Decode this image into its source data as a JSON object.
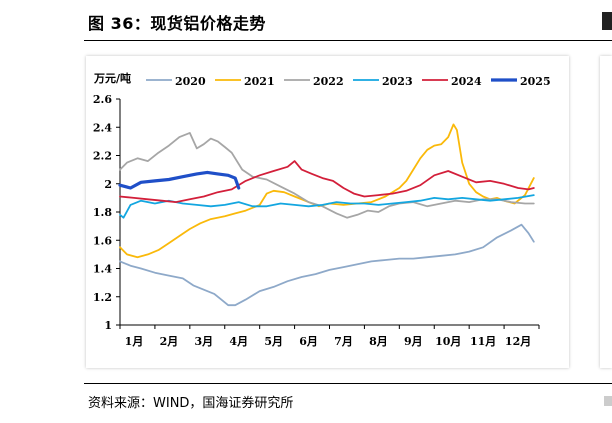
{
  "figure": {
    "title": "图 36：现货铝价格走势",
    "source": "资料来源：WIND，国海证券研究所"
  },
  "chart_data": {
    "type": "line",
    "title": "",
    "unit_label": "万元/吨",
    "xlabel": "",
    "ylabel": "万元/吨",
    "ylim": [
      1,
      2.6
    ],
    "yticks": [
      1,
      1.2,
      1.4,
      1.6,
      1.8,
      2,
      2.2,
      2.4,
      2.6
    ],
    "ytick_labels": [
      "1",
      "1.2",
      "1.4",
      "1.6",
      "1.8",
      "2",
      "2.2",
      "2.4",
      "2.6"
    ],
    "xlim": [
      1,
      13
    ],
    "xticks": [
      1,
      2,
      3,
      4,
      5,
      6,
      7,
      8,
      9,
      10,
      11,
      12
    ],
    "xtick_labels": [
      "1月",
      "2月",
      "3月",
      "4月",
      "5月",
      "6月",
      "7月",
      "8月",
      "9月",
      "10月",
      "11月",
      "12月"
    ],
    "legend_position": "top",
    "series": [
      {
        "name": "2020",
        "color": "#8EA9C9",
        "width": 1.8,
        "x": [
          1,
          1.3,
          1.6,
          2,
          2.4,
          2.8,
          3.1,
          3.4,
          3.7,
          3.9,
          4.1,
          4.3,
          4.6,
          5,
          5.4,
          5.8,
          6.2,
          6.6,
          7,
          7.4,
          7.8,
          8.2,
          8.6,
          9,
          9.4,
          9.8,
          10.2,
          10.6,
          11,
          11.4,
          11.8,
          12.2,
          12.5,
          12.7,
          12.85
        ],
        "y": [
          1.45,
          1.42,
          1.4,
          1.37,
          1.35,
          1.33,
          1.28,
          1.25,
          1.22,
          1.18,
          1.14,
          1.14,
          1.18,
          1.24,
          1.27,
          1.31,
          1.34,
          1.36,
          1.39,
          1.41,
          1.43,
          1.45,
          1.46,
          1.47,
          1.47,
          1.48,
          1.49,
          1.5,
          1.52,
          1.55,
          1.62,
          1.67,
          1.71,
          1.65,
          1.59
        ]
      },
      {
        "name": "2021",
        "color": "#FAB90A",
        "width": 1.8,
        "x": [
          1,
          1.2,
          1.5,
          1.8,
          2.1,
          2.4,
          2.7,
          3,
          3.3,
          3.6,
          4,
          4.3,
          4.6,
          5,
          5.2,
          5.4,
          5.7,
          6,
          6.3,
          6.7,
          7,
          7.4,
          7.8,
          8.2,
          8.6,
          9,
          9.2,
          9.4,
          9.6,
          9.8,
          10,
          10.2,
          10.4,
          10.55,
          10.65,
          10.8,
          11,
          11.2,
          11.4,
          11.6,
          11.8,
          12,
          12.3,
          12.6,
          12.85
        ],
        "y": [
          1.55,
          1.5,
          1.48,
          1.5,
          1.53,
          1.58,
          1.63,
          1.68,
          1.72,
          1.75,
          1.77,
          1.79,
          1.81,
          1.85,
          1.93,
          1.95,
          1.94,
          1.91,
          1.88,
          1.84,
          1.86,
          1.85,
          1.86,
          1.87,
          1.91,
          1.97,
          2.02,
          2.1,
          2.18,
          2.24,
          2.27,
          2.28,
          2.33,
          2.42,
          2.38,
          2.15,
          2.0,
          1.94,
          1.91,
          1.89,
          1.9,
          1.88,
          1.86,
          1.92,
          2.04
        ]
      },
      {
        "name": "2022",
        "color": "#A6A6A6",
        "width": 1.8,
        "x": [
          1,
          1.2,
          1.5,
          1.8,
          2.1,
          2.4,
          2.7,
          3,
          3.2,
          3.4,
          3.6,
          3.8,
          4,
          4.2,
          4.5,
          4.8,
          5.2,
          5.6,
          6,
          6.4,
          6.8,
          7.2,
          7.5,
          7.8,
          8.1,
          8.4,
          8.7,
          9,
          9.4,
          9.8,
          10.2,
          10.6,
          11,
          11.4,
          11.8,
          12.2,
          12.6,
          12.85
        ],
        "y": [
          2.1,
          2.15,
          2.18,
          2.16,
          2.22,
          2.27,
          2.33,
          2.36,
          2.25,
          2.28,
          2.32,
          2.3,
          2.26,
          2.22,
          2.1,
          2.05,
          2.03,
          1.98,
          1.93,
          1.87,
          1.84,
          1.79,
          1.76,
          1.78,
          1.81,
          1.8,
          1.84,
          1.86,
          1.87,
          1.84,
          1.86,
          1.88,
          1.87,
          1.89,
          1.89,
          1.87,
          1.86,
          1.86
        ]
      },
      {
        "name": "2023",
        "color": "#13A6E0",
        "width": 1.8,
        "x": [
          1,
          1.1,
          1.3,
          1.6,
          2,
          2.4,
          2.8,
          3.2,
          3.6,
          4,
          4.4,
          4.8,
          5.2,
          5.6,
          6,
          6.4,
          6.8,
          7.2,
          7.6,
          8,
          8.4,
          8.8,
          9.2,
          9.6,
          10,
          10.4,
          10.8,
          11.2,
          11.6,
          12,
          12.4,
          12.85
        ],
        "y": [
          1.78,
          1.76,
          1.85,
          1.88,
          1.86,
          1.88,
          1.86,
          1.85,
          1.84,
          1.85,
          1.87,
          1.84,
          1.84,
          1.86,
          1.85,
          1.84,
          1.85,
          1.87,
          1.86,
          1.86,
          1.85,
          1.86,
          1.87,
          1.88,
          1.9,
          1.89,
          1.9,
          1.89,
          1.88,
          1.89,
          1.9,
          1.92
        ]
      },
      {
        "name": "2024",
        "color": "#D31F3A",
        "width": 1.8,
        "x": [
          1,
          1.4,
          1.8,
          2.2,
          2.6,
          3,
          3.4,
          3.8,
          4.2,
          4.6,
          5,
          5.4,
          5.8,
          6,
          6.2,
          6.5,
          6.8,
          7.1,
          7.4,
          7.7,
          8,
          8.4,
          8.8,
          9.2,
          9.6,
          10,
          10.4,
          10.8,
          11.2,
          11.6,
          12,
          12.4,
          12.7,
          12.85
        ],
        "y": [
          1.91,
          1.9,
          1.89,
          1.88,
          1.87,
          1.89,
          1.91,
          1.94,
          1.96,
          2.02,
          2.06,
          2.09,
          2.12,
          2.16,
          2.1,
          2.07,
          2.04,
          2.02,
          1.97,
          1.93,
          1.91,
          1.92,
          1.93,
          1.95,
          1.99,
          2.06,
          2.09,
          2.05,
          2.01,
          2.02,
          2.0,
          1.97,
          1.96,
          1.97
        ]
      },
      {
        "name": "2025",
        "color": "#1F4FC8",
        "width": 3.2,
        "x": [
          1,
          1.3,
          1.6,
          2,
          2.4,
          2.8,
          3.2,
          3.5,
          3.8,
          4.1,
          4.3,
          4.4
        ],
        "y": [
          1.99,
          1.97,
          2.01,
          2.02,
          2.03,
          2.05,
          2.07,
          2.08,
          2.07,
          2.06,
          2.04,
          1.97
        ]
      }
    ]
  }
}
